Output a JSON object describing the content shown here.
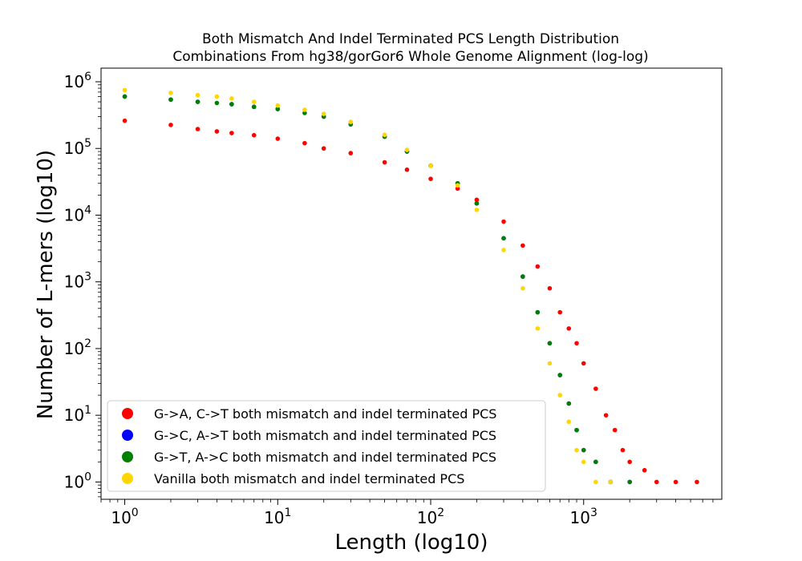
{
  "chart_data": {
    "type": "scatter",
    "title_lines": [
      "Both Mismatch And Indel Terminated PCS Length Distribution",
      "Combinations From hg38/gorGor6 Whole Genome Alignment (log-log)"
    ],
    "xlabel": "Length (log10)",
    "ylabel": "Number of L-mers (log10)",
    "xscale": "log",
    "yscale": "log",
    "xlim": [
      0.7,
      8000
    ],
    "ylim": [
      0.55,
      1600000
    ],
    "grid": false,
    "legend_position": "lower-left",
    "x_ticks": [
      {
        "value": 1,
        "base": "10",
        "exp": "0"
      },
      {
        "value": 10,
        "base": "10",
        "exp": "1"
      },
      {
        "value": 100,
        "base": "10",
        "exp": "2"
      },
      {
        "value": 1000,
        "base": "10",
        "exp": "3"
      }
    ],
    "y_ticks": [
      {
        "value": 1,
        "base": "10",
        "exp": "0"
      },
      {
        "value": 10,
        "base": "10",
        "exp": "1"
      },
      {
        "value": 100,
        "base": "10",
        "exp": "2"
      },
      {
        "value": 1000,
        "base": "10",
        "exp": "3"
      },
      {
        "value": 10000,
        "base": "10",
        "exp": "4"
      },
      {
        "value": 100000,
        "base": "10",
        "exp": "5"
      },
      {
        "value": 1000000,
        "base": "10",
        "exp": "6"
      }
    ],
    "series": [
      {
        "name": "G->A, C->T both mismatch and indel terminated PCS",
        "color": "#ff0000",
        "points": [
          [
            1,
            260000
          ],
          [
            2,
            225000
          ],
          [
            3,
            195000
          ],
          [
            4,
            180000
          ],
          [
            5,
            170000
          ],
          [
            7,
            158000
          ],
          [
            10,
            140000
          ],
          [
            15,
            120000
          ],
          [
            20,
            100000
          ],
          [
            30,
            85000
          ],
          [
            50,
            62000
          ],
          [
            70,
            48000
          ],
          [
            100,
            35000
          ],
          [
            150,
            25000
          ],
          [
            200,
            17000
          ],
          [
            300,
            8000
          ],
          [
            400,
            3500
          ],
          [
            500,
            1700
          ],
          [
            600,
            800
          ],
          [
            700,
            350
          ],
          [
            800,
            200
          ],
          [
            900,
            120
          ],
          [
            1000,
            60
          ],
          [
            1200,
            25
          ],
          [
            1400,
            10
          ],
          [
            1600,
            6
          ],
          [
            1800,
            3
          ],
          [
            2000,
            2
          ],
          [
            2500,
            1.5
          ],
          [
            3000,
            1
          ],
          [
            4000,
            1
          ],
          [
            5500,
            1
          ]
        ]
      },
      {
        "name": "G->C, A->T both mismatch and indel terminated PCS",
        "color": "#0000ff",
        "points": [
          [
            1,
            600000
          ],
          [
            2,
            540000
          ],
          [
            3,
            500000
          ],
          [
            5,
            460000
          ],
          [
            7,
            420000
          ],
          [
            10,
            390000
          ],
          [
            20,
            300000
          ],
          [
            30,
            230000
          ],
          [
            50,
            150000
          ],
          [
            70,
            90000
          ],
          [
            100,
            55000
          ],
          [
            150,
            30000
          ],
          [
            200,
            15000
          ],
          [
            300,
            4500
          ],
          [
            400,
            1200
          ],
          [
            500,
            350
          ],
          [
            600,
            120
          ],
          [
            700,
            40
          ],
          [
            800,
            15
          ],
          [
            900,
            6
          ],
          [
            1000,
            3
          ],
          [
            1200,
            2
          ],
          [
            1500,
            1
          ],
          [
            2000,
            1
          ]
        ]
      },
      {
        "name": "G->T, A->C both mismatch and indel terminated PCS",
        "color": "#008000",
        "points": [
          [
            1,
            600000
          ],
          [
            2,
            540000
          ],
          [
            3,
            500000
          ],
          [
            4,
            480000
          ],
          [
            5,
            460000
          ],
          [
            7,
            420000
          ],
          [
            10,
            390000
          ],
          [
            15,
            340000
          ],
          [
            20,
            300000
          ],
          [
            30,
            230000
          ],
          [
            50,
            150000
          ],
          [
            70,
            90000
          ],
          [
            100,
            55000
          ],
          [
            150,
            30000
          ],
          [
            200,
            15000
          ],
          [
            300,
            4500
          ],
          [
            400,
            1200
          ],
          [
            500,
            350
          ],
          [
            600,
            120
          ],
          [
            700,
            40
          ],
          [
            800,
            15
          ],
          [
            900,
            6
          ],
          [
            1000,
            3
          ],
          [
            1200,
            2
          ],
          [
            1500,
            1
          ],
          [
            2000,
            1
          ]
        ]
      },
      {
        "name": "Vanilla both mismatch and indel terminated PCS",
        "color": "#ffd700",
        "points": [
          [
            1,
            750000
          ],
          [
            2,
            680000
          ],
          [
            3,
            630000
          ],
          [
            4,
            600000
          ],
          [
            5,
            560000
          ],
          [
            7,
            500000
          ],
          [
            10,
            440000
          ],
          [
            15,
            380000
          ],
          [
            20,
            330000
          ],
          [
            30,
            250000
          ],
          [
            50,
            160000
          ],
          [
            70,
            95000
          ],
          [
            100,
            55000
          ],
          [
            150,
            28000
          ],
          [
            200,
            12000
          ],
          [
            300,
            3000
          ],
          [
            400,
            800
          ],
          [
            500,
            200
          ],
          [
            600,
            60
          ],
          [
            700,
            20
          ],
          [
            800,
            8
          ],
          [
            900,
            3
          ],
          [
            1000,
            2
          ],
          [
            1200,
            1
          ],
          [
            1500,
            1
          ]
        ]
      }
    ]
  }
}
